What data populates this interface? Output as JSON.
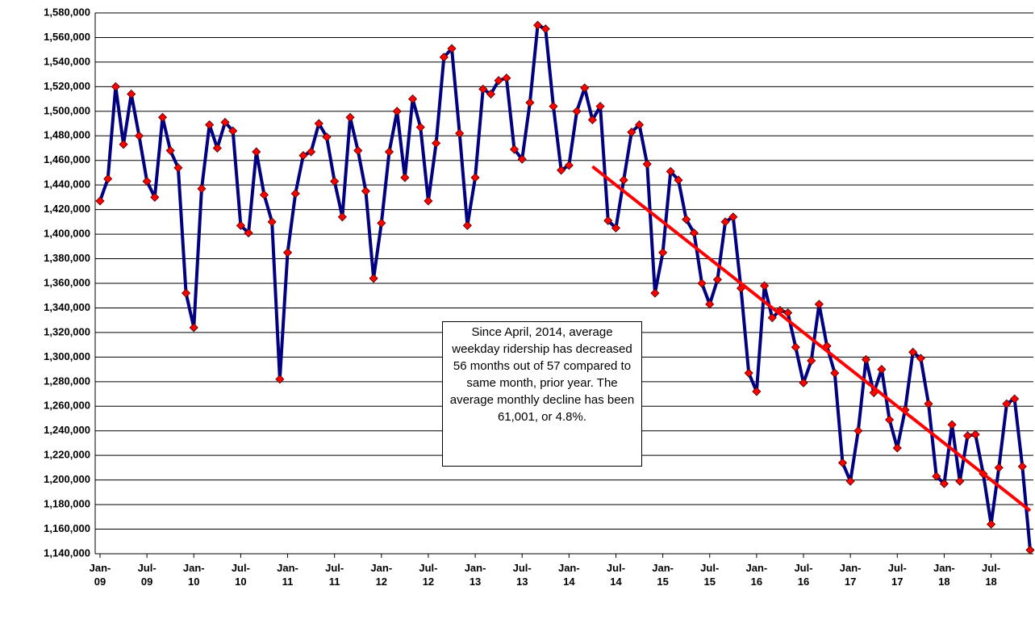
{
  "chart_data": {
    "type": "line",
    "categories": [
      "Jan-\n09",
      null,
      null,
      null,
      null,
      null,
      "Jul-\n09",
      null,
      null,
      null,
      null,
      null,
      "Jan-\n10",
      null,
      null,
      null,
      null,
      null,
      "Jul-\n10",
      null,
      null,
      null,
      null,
      null,
      "Jan-\n11",
      null,
      null,
      null,
      null,
      null,
      "Jul-\n11",
      null,
      null,
      null,
      null,
      null,
      "Jan-\n12",
      null,
      null,
      null,
      null,
      null,
      "Jul-\n12",
      null,
      null,
      null,
      null,
      null,
      "Jan-\n13",
      null,
      null,
      null,
      null,
      null,
      "Jul-\n13",
      null,
      null,
      null,
      null,
      null,
      "Jan-\n14",
      null,
      null,
      null,
      null,
      null,
      "Jul-\n14",
      null,
      null,
      null,
      null,
      null,
      "Jan-\n15",
      null,
      null,
      null,
      null,
      null,
      "Jul-\n15",
      null,
      null,
      null,
      null,
      null,
      "Jan-\n16",
      null,
      null,
      null,
      null,
      null,
      "Jul-\n16",
      null,
      null,
      null,
      null,
      null,
      "Jan-\n17",
      null,
      null,
      null,
      null,
      null,
      "Jul-\n17",
      null,
      null,
      null,
      null,
      null,
      "Jan-\n18",
      null,
      null,
      null,
      null,
      null,
      "Jul-\n18",
      null,
      null,
      null,
      null,
      null
    ],
    "series": [
      {
        "color": "#000080",
        "marker_color": "#ff0000",
        "values": [
          1427000,
          1445000,
          1520000,
          1473000,
          1514000,
          1480000,
          1443000,
          1430000,
          1495000,
          1468000,
          1454000,
          1352000,
          1324000,
          1437000,
          1489000,
          1470000,
          1491000,
          1484000,
          1407000,
          1401000,
          1467000,
          1432000,
          1410000,
          1282000,
          1385000,
          1433000,
          1464000,
          1467000,
          1490000,
          1479000,
          1443000,
          1414000,
          1495000,
          1468000,
          1435000,
          1364000,
          1409000,
          1467000,
          1500000,
          1446000,
          1510000,
          1487000,
          1427000,
          1474000,
          1544000,
          1551000,
          1482000,
          1407000,
          1446000,
          1518000,
          1514000,
          1525000,
          1527000,
          1469000,
          1461000,
          1507000,
          1570000,
          1567000,
          1504000,
          1452000,
          1456000,
          1500000,
          1519000,
          1493000,
          1504000,
          1411000,
          1405000,
          1444000,
          1483000,
          1489000,
          1457000,
          1352000,
          1385000,
          1451000,
          1444000,
          1412000,
          1401000,
          1360000,
          1343000,
          1363000,
          1410000,
          1414000,
          1356000,
          1287000,
          1272000,
          1358000,
          1332000,
          1338000,
          1336000,
          1308000,
          1279000,
          1297000,
          1343000,
          1309000,
          1287000,
          1214000,
          1199000,
          1240000,
          1298000,
          1271000,
          1290000,
          1249000,
          1226000,
          1257000,
          1304000,
          1299000,
          1262000,
          1203000,
          1197000,
          1245000,
          1199000,
          1236000,
          1237000,
          1205000,
          1164000,
          1210000,
          1262000,
          1266000,
          1211000,
          1143000
        ]
      }
    ],
    "trend_line": {
      "color": "#ff0000",
      "values": [
        null,
        null,
        null,
        null,
        null,
        null,
        null,
        null,
        null,
        null,
        null,
        null,
        null,
        null,
        null,
        null,
        null,
        null,
        null,
        null,
        null,
        null,
        null,
        null,
        null,
        null,
        null,
        null,
        null,
        null,
        null,
        null,
        null,
        null,
        null,
        null,
        null,
        null,
        null,
        null,
        null,
        null,
        null,
        null,
        null,
        null,
        null,
        null,
        null,
        null,
        null,
        null,
        null,
        null,
        null,
        null,
        null,
        null,
        null,
        null,
        null,
        null,
        null,
        1455000,
        1450000,
        1445000,
        1440000,
        1435000,
        1430000,
        1425000,
        1420000,
        1415000,
        1410000,
        1405000,
        1400000,
        1395000,
        1390000,
        1385000,
        1380000,
        1375000,
        1370000,
        1365000,
        1360000,
        1355000,
        1350000,
        1345000,
        1340000,
        1335000,
        1330000,
        1325000,
        1320000,
        1315000,
        1310000,
        1305000,
        1300000,
        1295000,
        1290000,
        1285000,
        1280000,
        1275000,
        1270000,
        1265000,
        1260000,
        1255000,
        1250000,
        1245000,
        1240000,
        1235000,
        1230000,
        1225000,
        1220000,
        1215000,
        1210000,
        1205000,
        1200000,
        1195000,
        1190000,
        1185000,
        1180000,
        1175000
      ]
    },
    "ylim": [
      1140000,
      1580000
    ],
    "yticks": [
      {
        "value": 1140000,
        "label": "1,140,000"
      },
      {
        "value": 1160000,
        "label": "1,160,000"
      },
      {
        "value": 1180000,
        "label": "1,180,000"
      },
      {
        "value": 1200000,
        "label": "1,200,000"
      },
      {
        "value": 1220000,
        "label": "1,220,000"
      },
      {
        "value": 1240000,
        "label": "1,240,000"
      },
      {
        "value": 1260000,
        "label": "1,260,000"
      },
      {
        "value": 1280000,
        "label": "1,280,000"
      },
      {
        "value": 1300000,
        "label": "1,300,000"
      },
      {
        "value": 1320000,
        "label": "1,320,000"
      },
      {
        "value": 1340000,
        "label": "1,340,000"
      },
      {
        "value": 1360000,
        "label": "1,360,000"
      },
      {
        "value": 1380000,
        "label": "1,380,000"
      },
      {
        "value": 1400000,
        "label": "1,400,000"
      },
      {
        "value": 1420000,
        "label": "1,420,000"
      },
      {
        "value": 1440000,
        "label": "1,440,000"
      },
      {
        "value": 1460000,
        "label": "1,460,000"
      },
      {
        "value": 1480000,
        "label": "1,480,000"
      },
      {
        "value": 1500000,
        "label": "1,500,000"
      },
      {
        "value": 1520000,
        "label": "1,520,000"
      },
      {
        "value": 1540000,
        "label": "1,540,000"
      },
      {
        "value": 1560000,
        "label": "1,560,000"
      },
      {
        "value": 1580000,
        "label": "1,580,000"
      }
    ],
    "grid": true,
    "annotation": "Since April, 2014, average weekday ridership has decreased 56 months out of 57 compared to same month, prior year.  The average monthly decline has been 61,001, or 4.8%."
  }
}
